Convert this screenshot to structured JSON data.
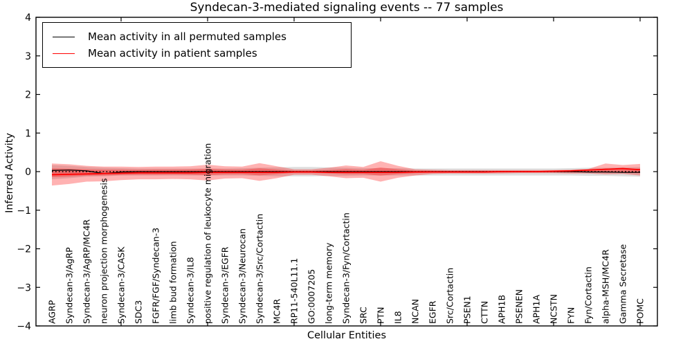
{
  "chart_data": {
    "type": "line",
    "title": "Syndecan-3-mediated signaling events -- 77 samples",
    "xlabel": "Cellular Entities",
    "ylabel": "Inferred Activity",
    "ylim": [
      -4,
      4
    ],
    "yticks": [
      -4,
      -3,
      -2,
      -1,
      0,
      1,
      2,
      3,
      4
    ],
    "xtick_category_indices": [
      4,
      9,
      14,
      19,
      24,
      29,
      34
    ],
    "grid": false,
    "legend_position": "upper left",
    "zero_line": true,
    "legend": [
      {
        "label": "Mean activity in all permuted samples",
        "color": "#000000"
      },
      {
        "label": "Mean activity in patient samples",
        "color": "#ff0000"
      }
    ],
    "categories": [
      "AGRP",
      "Syndecan-3/AgRP",
      "Syndecan-3/AgRP/MC4R",
      "neuron projection morphogenesis",
      "Syndecan-3/CASK",
      "SDC3",
      "FGFR/FGF/Syndecan-3",
      "limb bud formation",
      "Syndecan-3/IL8",
      "positive regulation of leukocyte migration",
      "Syndecan-3/EGFR",
      "Syndecan-3/Neurocan",
      "Syndecan-3/Src/Cortactin",
      "MC4R",
      "RP11-540L11.1",
      "GO:0007205",
      "long-term memory",
      "Syndecan-3/Fyn/Cortactin",
      "SRC",
      "PTN",
      "IL8",
      "NCAN",
      "EGFR",
      "Src/Cortactin",
      "PSEN1",
      "CTTN",
      "APH1B",
      "PSENEN",
      "APH1A",
      "NCSTN",
      "FYN",
      "Fyn/Cortactin",
      "alpha-MSH/MC4R",
      "Gamma Secretase",
      "POMC"
    ],
    "series": [
      {
        "name": "Mean activity in all permuted samples",
        "color": "#000000",
        "linewidth": 1.3,
        "values": [
          0.03,
          0.04,
          0.02,
          -0.05,
          -0.01,
          0,
          0,
          0,
          0,
          0,
          0,
          0,
          0,
          0,
          0,
          0,
          0,
          0,
          0,
          0,
          0,
          0,
          0,
          0,
          0,
          0,
          0,
          0,
          0,
          0,
          0,
          -0.01,
          -0.01,
          -0.02,
          -0.02
        ]
      },
      {
        "name": "Mean activity in patient samples",
        "color": "#ff0000",
        "linewidth": 1.8,
        "values": [
          -0.08,
          -0.07,
          -0.06,
          -0.05,
          -0.04,
          -0.03,
          -0.03,
          -0.03,
          -0.03,
          -0.02,
          -0.02,
          -0.02,
          -0.02,
          -0.02,
          -0.01,
          -0.01,
          -0.02,
          -0.02,
          -0.02,
          -0.02,
          -0.02,
          -0.01,
          -0.01,
          -0.01,
          -0.01,
          -0.01,
          0,
          0,
          0,
          0.01,
          0.02,
          0.04,
          0.06,
          0.08,
          0.05
        ]
      }
    ],
    "bands": [
      {
        "name": "permuted-samples-std",
        "color": "#000000",
        "opacity": 0.13,
        "inner_scale": null,
        "upper": [
          0.17,
          0.15,
          0.12,
          0.1,
          0.09,
          0.08,
          0.08,
          0.08,
          0.08,
          0.08,
          0.08,
          0.09,
          0.1,
          0.11,
          0.12,
          0.12,
          0.11,
          0.1,
          0.09,
          0.09,
          0.09,
          0.08,
          0.08,
          0.08,
          0.08,
          0.08,
          0.08,
          0.08,
          0.08,
          0.08,
          0.09,
          0.1,
          0.1,
          0.11,
          0.12
        ],
        "lower": [
          -0.2,
          -0.17,
          -0.13,
          -0.12,
          -0.1,
          -0.1,
          -0.1,
          -0.1,
          -0.1,
          -0.1,
          -0.1,
          -0.1,
          -0.11,
          -0.12,
          -0.12,
          -0.12,
          -0.11,
          -0.11,
          -0.1,
          -0.1,
          -0.1,
          -0.1,
          -0.1,
          -0.1,
          -0.1,
          -0.1,
          -0.1,
          -0.1,
          -0.1,
          -0.1,
          -0.1,
          -0.11,
          -0.11,
          -0.12,
          -0.13
        ]
      },
      {
        "name": "patient-samples-std",
        "color": "#ff0000",
        "opacity": 0.3,
        "inner_scale": 0.4,
        "upper": [
          0.21,
          0.19,
          0.15,
          0.13,
          0.13,
          0.12,
          0.13,
          0.13,
          0.14,
          0.18,
          0.14,
          0.13,
          0.22,
          0.14,
          0.06,
          0.06,
          0.1,
          0.16,
          0.12,
          0.27,
          0.15,
          0.06,
          0.05,
          0.04,
          0.04,
          0.04,
          0.04,
          0.04,
          0.04,
          0.04,
          0.05,
          0.07,
          0.21,
          0.17,
          0.2
        ],
        "lower": [
          -0.36,
          -0.32,
          -0.26,
          -0.25,
          -0.22,
          -0.2,
          -0.2,
          -0.19,
          -0.2,
          -0.23,
          -0.18,
          -0.17,
          -0.24,
          -0.17,
          -0.08,
          -0.08,
          -0.12,
          -0.17,
          -0.16,
          -0.26,
          -0.16,
          -0.1,
          -0.06,
          -0.05,
          -0.05,
          -0.05,
          -0.05,
          -0.04,
          -0.04,
          -0.04,
          -0.05,
          -0.05,
          -0.07,
          -0.06,
          -0.1
        ]
      }
    ]
  }
}
